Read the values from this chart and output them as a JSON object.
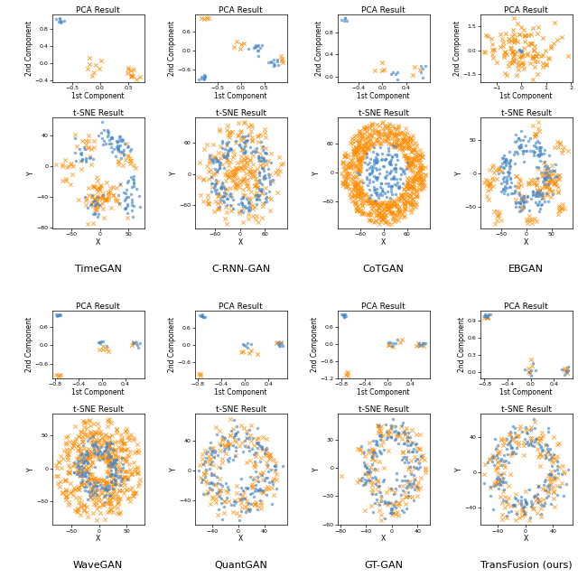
{
  "models": [
    "TimeGAN",
    "C-RNN-GAN",
    "CoTGAN",
    "EBGAN",
    "WaveGAN",
    "QuantGAN",
    "GT-GAN",
    "TransFusion (ours)"
  ],
  "orange_color": "#FF8C00",
  "blue_color": "#4488CC",
  "title_fontsize": 6.5,
  "label_fontsize": 5.5,
  "tick_fontsize": 4.5,
  "model_fontsize": 8,
  "pca_title": "PCA Result",
  "tsne_title": "t-SNE Result",
  "pca_xlabel": "1st Component",
  "pca_ylabel": "2nd Component",
  "tsne_xlabel": "X",
  "tsne_ylabel": "Y"
}
